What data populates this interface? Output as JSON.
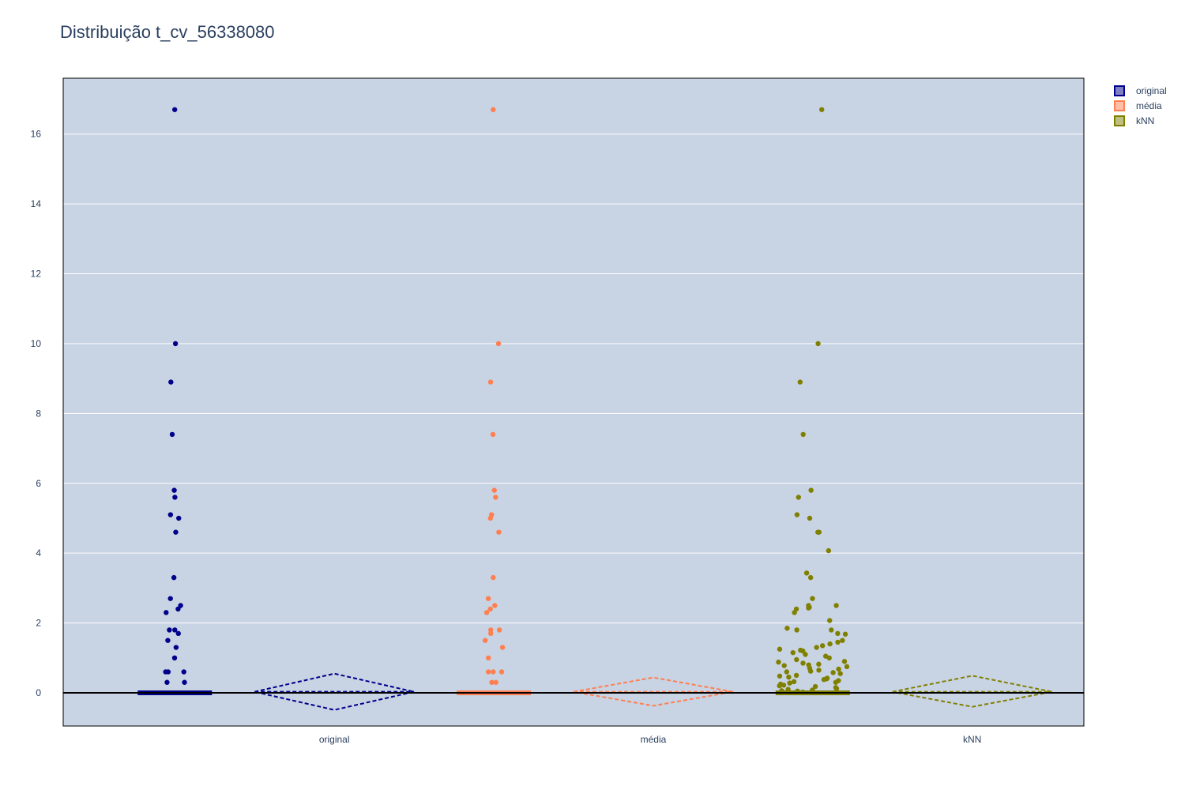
{
  "chart_data": {
    "type": "scatter",
    "title": "Distribuição t_cv_56338080",
    "xlabel": "",
    "ylabel": "",
    "ylim": [
      -0.95,
      17.6
    ],
    "y_ticks": [
      0,
      2,
      4,
      6,
      8,
      10,
      12,
      14,
      16
    ],
    "categories": [
      "original",
      "média",
      "kNN"
    ],
    "grid": true,
    "legend_position": "top-right",
    "colors": {
      "background": "#c8d3e3",
      "grid": "#ffffff",
      "zero_line": "#000000",
      "text": "#2a3f5f"
    },
    "series": [
      {
        "name": "original",
        "color": "#00008b",
        "points": [
          16.7,
          10.0,
          8.9,
          7.4,
          5.8,
          5.6,
          5.1,
          5.0,
          4.6,
          3.3,
          2.7,
          2.5,
          2.4,
          2.3,
          1.8,
          1.8,
          1.7,
          1.5,
          1.3,
          1.0,
          0.6,
          0.6,
          0.6,
          0.3,
          0.3
        ],
        "summary": {
          "mean": 0.03,
          "upper": 0.55,
          "lower": -0.49
        }
      },
      {
        "name": "média",
        "color": "#ff7f50",
        "points": [
          16.7,
          10.0,
          8.9,
          7.4,
          5.8,
          5.6,
          5.1,
          5.0,
          4.6,
          3.3,
          2.7,
          2.5,
          2.4,
          2.3,
          1.8,
          1.8,
          1.7,
          1.5,
          1.3,
          1.0,
          0.6,
          0.6,
          0.6,
          0.3,
          0.3
        ],
        "summary": {
          "mean": 0.03,
          "upper": 0.44,
          "lower": -0.37
        }
      },
      {
        "name": "kNN",
        "color": "#808000",
        "points": [
          16.7,
          10.0,
          8.9,
          7.4,
          5.8,
          5.6,
          5.1,
          5.0,
          4.6,
          4.6,
          4.07,
          3.43,
          3.3,
          2.7,
          2.5,
          2.5,
          2.45,
          2.43,
          2.4,
          2.3,
          2.07,
          1.85,
          1.8,
          1.8,
          1.7,
          1.68,
          1.5,
          1.45,
          1.4,
          1.35,
          1.3,
          1.25,
          1.22,
          1.2,
          1.15,
          1.1,
          1.05,
          1.0,
          0.95,
          0.9,
          0.88,
          0.85,
          0.82,
          0.8,
          0.78,
          0.75,
          0.7,
          0.68,
          0.65,
          0.62,
          0.6,
          0.58,
          0.55,
          0.5,
          0.48,
          0.45,
          0.42,
          0.4,
          0.38,
          0.35,
          0.32,
          0.3,
          0.28,
          0.25,
          0.22,
          0.2,
          0.18,
          0.15,
          0.12,
          0.1,
          0.08,
          0.06,
          0.05,
          0.04,
          0.03,
          0.02
        ],
        "summary": {
          "mean": 0.03,
          "upper": 0.49,
          "lower": -0.4
        }
      }
    ]
  }
}
